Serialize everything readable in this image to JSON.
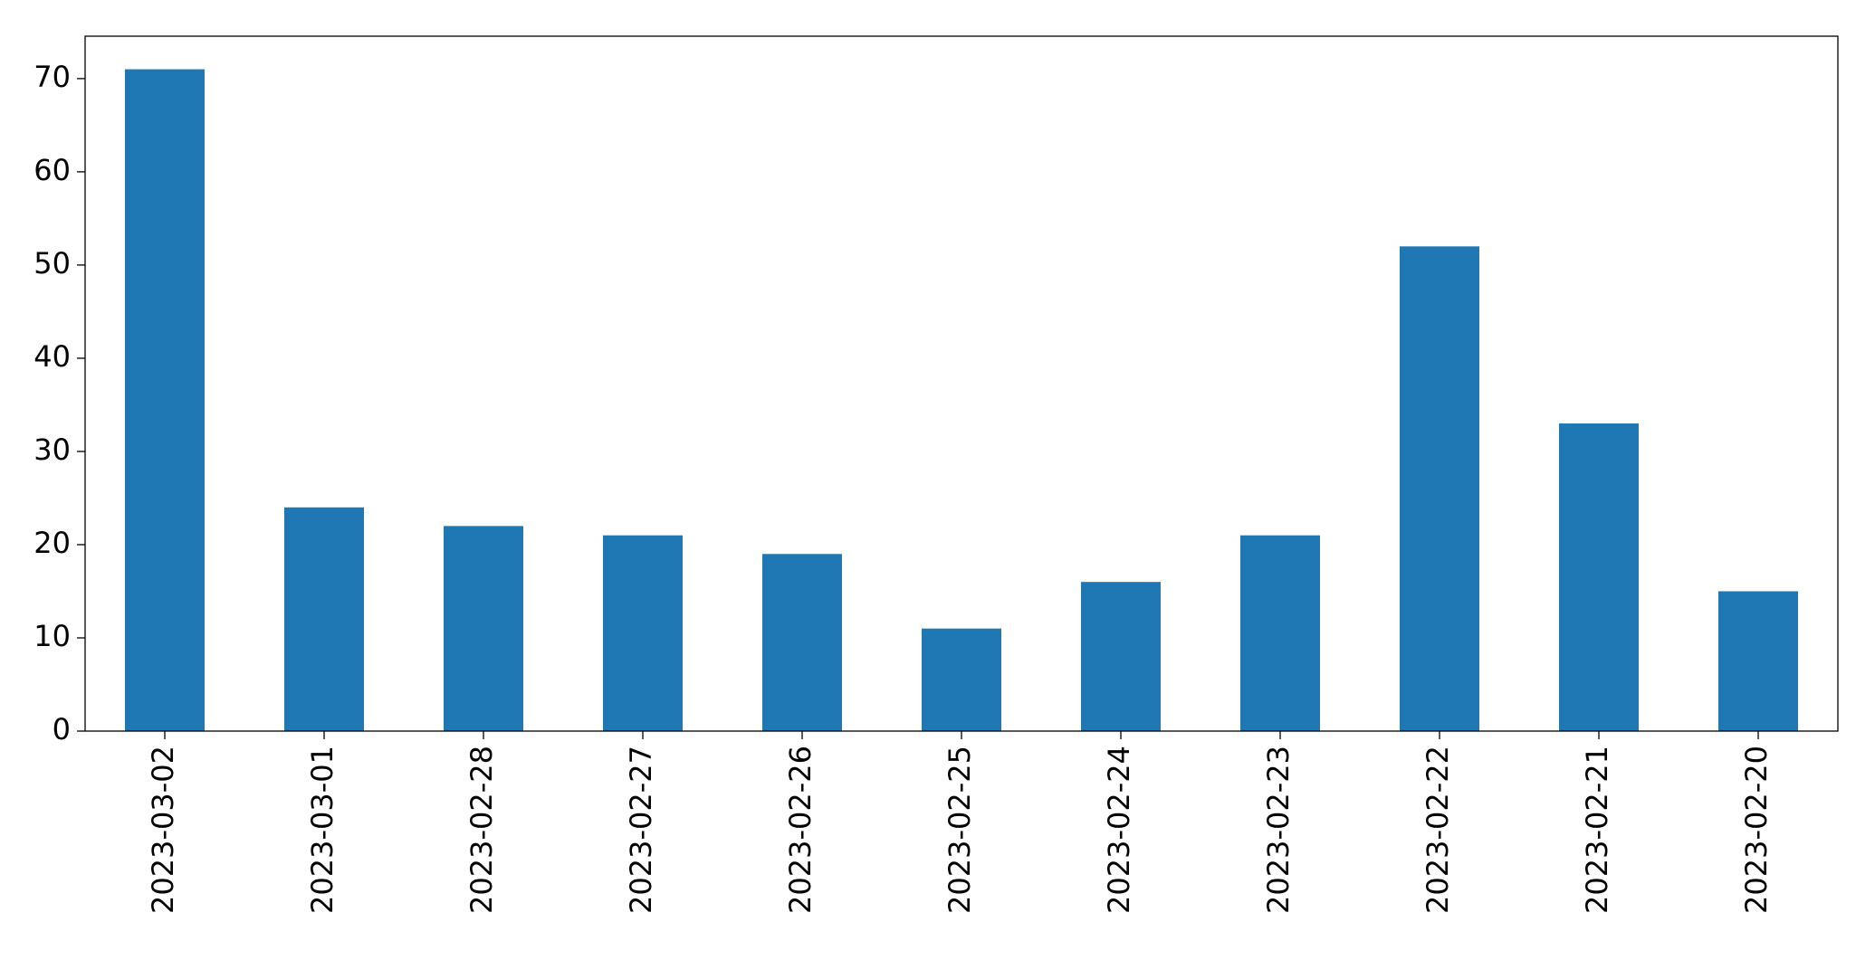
{
  "chart_data": {
    "type": "bar",
    "categories": [
      "2023-03-02",
      "2023-03-01",
      "2023-02-28",
      "2023-02-27",
      "2023-02-26",
      "2023-02-25",
      "2023-02-24",
      "2023-02-23",
      "2023-02-22",
      "2023-02-21",
      "2023-02-20"
    ],
    "values": [
      71,
      24,
      22,
      21,
      19,
      11,
      16,
      21,
      52,
      33,
      15
    ],
    "color": "#1f77b4",
    "ylim": [
      0,
      74.55
    ],
    "yticks": [
      0,
      10,
      20,
      30,
      40,
      50,
      60,
      70
    ],
    "grid": false
  }
}
